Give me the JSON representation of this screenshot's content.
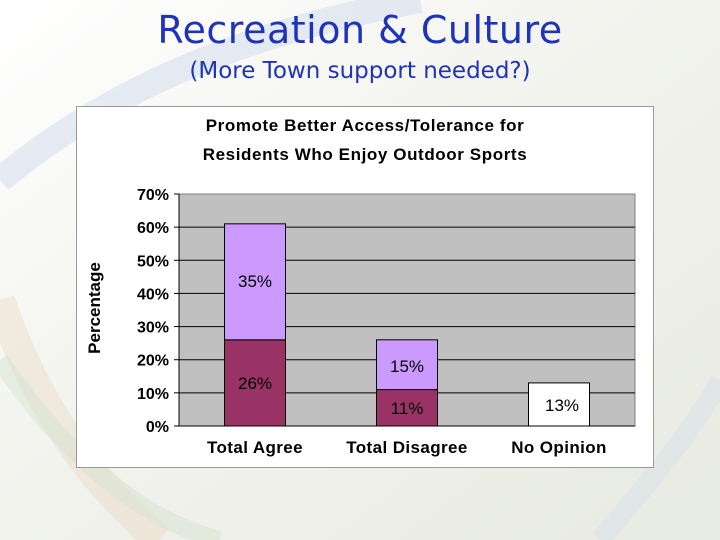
{
  "slide": {
    "title": "Recreation & Culture",
    "subtitle": "(More Town support needed?)"
  },
  "colors": {
    "title": "#1f33b8",
    "agree_segment": "#993366",
    "strongly_segment": "#cc99ff",
    "opinion_segment": "#ffffff",
    "plot_area": "#c0c0c0"
  },
  "chart_data": {
    "type": "bar",
    "stacked": true,
    "title": "Promote Better Access/Tolerance for Residents Who Enjoy Outdoor Sports",
    "title_lines": [
      "Promote Better Access/Tolerance for",
      "Residents Who Enjoy Outdoor Sports"
    ],
    "xlabel": "",
    "ylabel": "Percentage",
    "ylim": [
      0,
      70
    ],
    "yticks": [
      0,
      10,
      20,
      30,
      40,
      50,
      60,
      70
    ],
    "ytick_labels": [
      "0%",
      "10%",
      "20%",
      "30%",
      "40%",
      "50%",
      "60%",
      "70%"
    ],
    "grid": true,
    "legend": "none",
    "categories": [
      "Total Agree",
      "Total Disagree",
      "No Opinion"
    ],
    "series": [
      {
        "color": "#993366",
        "values": [
          26,
          11,
          null
        ],
        "labels": [
          "26%",
          "11%",
          ""
        ]
      },
      {
        "color": "#cc99ff",
        "values": [
          35,
          15,
          null
        ],
        "labels": [
          "35%",
          "15%",
          ""
        ]
      },
      {
        "color": "#ffffff",
        "values": [
          null,
          null,
          13
        ],
        "labels": [
          "",
          "",
          "13%"
        ]
      }
    ]
  }
}
